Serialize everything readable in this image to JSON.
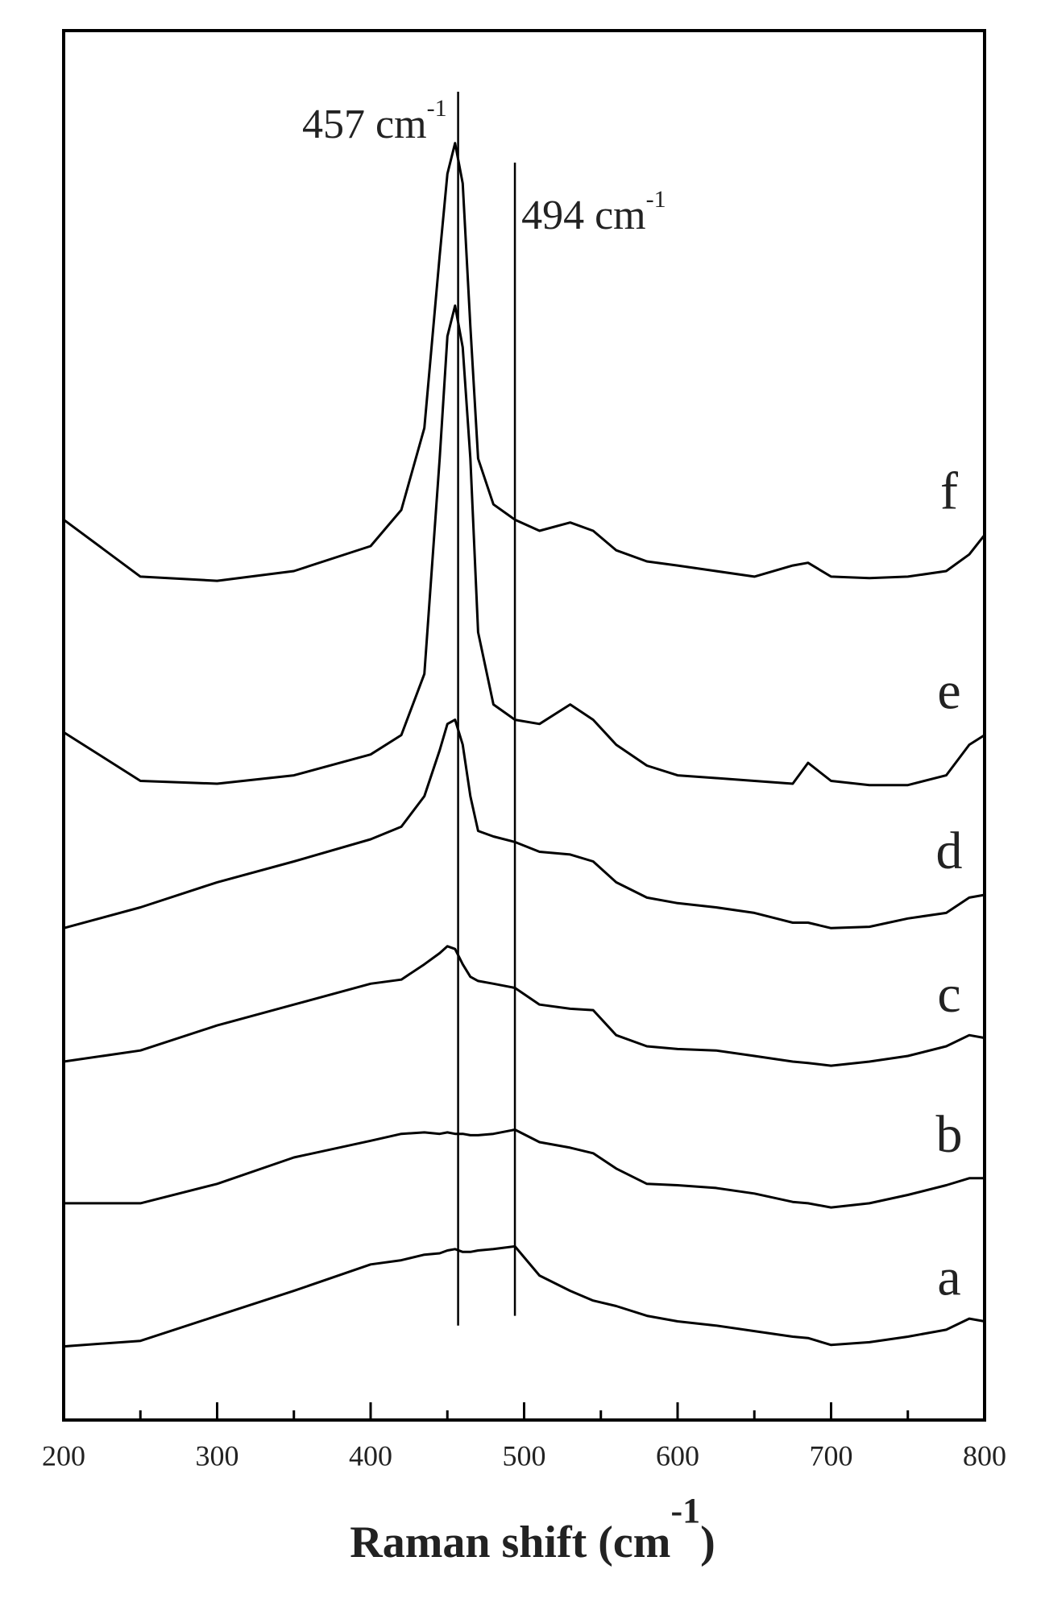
{
  "chart_data": {
    "type": "line",
    "xlabel": "Raman shift (cm",
    "xlabel_sup": "-1",
    "xlabel_end": ")",
    "x": [
      200,
      250,
      300,
      350,
      400,
      420,
      435,
      445,
      450,
      455,
      460,
      465,
      470,
      480,
      494,
      510,
      530,
      545,
      560,
      580,
      600,
      625,
      650,
      675,
      685,
      700,
      725,
      750,
      775,
      790,
      800
    ],
    "series": [
      {
        "name": "a",
        "color": "#000000",
        "values": [
          5.3,
          5.7,
          7.5,
          9.3,
          11.2,
          11.5,
          11.9,
          12.0,
          12.2,
          12.3,
          12.1,
          12.1,
          12.2,
          12.3,
          12.5,
          10.4,
          9.3,
          8.6,
          8.2,
          7.5,
          7.1,
          6.8,
          6.4,
          6.0,
          5.9,
          5.4,
          5.6,
          6.0,
          6.5,
          7.3,
          7.1
        ]
      },
      {
        "name": "b",
        "color": "#000000",
        "values": [
          15.6,
          15.6,
          17.0,
          18.9,
          20.1,
          20.6,
          20.7,
          20.6,
          20.7,
          20.6,
          20.6,
          20.5,
          20.5,
          20.6,
          20.9,
          20.0,
          19.6,
          19.2,
          18.1,
          17.0,
          16.9,
          16.7,
          16.3,
          15.7,
          15.6,
          15.3,
          15.6,
          16.2,
          16.9,
          17.4,
          17.4
        ]
      },
      {
        "name": "c",
        "color": "#000000",
        "values": [
          25.8,
          26.6,
          28.4,
          29.9,
          31.4,
          31.7,
          32.8,
          33.6,
          34.1,
          33.9,
          32.8,
          31.9,
          31.6,
          31.4,
          31.1,
          29.9,
          29.6,
          29.5,
          27.7,
          26.9,
          26.7,
          26.6,
          26.2,
          25.8,
          25.7,
          25.5,
          25.8,
          26.2,
          26.9,
          27.7,
          27.5
        ]
      },
      {
        "name": "d",
        "color": "#000000",
        "values": [
          35.4,
          36.9,
          38.7,
          40.2,
          41.8,
          42.7,
          44.9,
          48.2,
          50.1,
          50.4,
          48.6,
          44.9,
          42.4,
          42.0,
          41.6,
          40.9,
          40.7,
          40.2,
          38.7,
          37.6,
          37.2,
          36.9,
          36.5,
          35.8,
          35.8,
          35.4,
          35.5,
          36.1,
          36.5,
          37.6,
          37.8
        ]
      },
      {
        "name": "e",
        "color": "#000000",
        "values": [
          49.5,
          46.0,
          45.8,
          46.4,
          47.9,
          49.3,
          53.7,
          69.2,
          78.0,
          80.2,
          77.2,
          69.2,
          56.7,
          51.5,
          50.4,
          50.1,
          51.5,
          50.4,
          48.6,
          47.1,
          46.4,
          46.2,
          46.0,
          45.8,
          47.3,
          46.0,
          45.7,
          45.7,
          46.4,
          48.6,
          49.3
        ]
      },
      {
        "name": "f",
        "color": "#000000",
        "values": [
          64.8,
          60.7,
          60.4,
          61.1,
          62.9,
          65.5,
          71.4,
          83.8,
          89.7,
          91.9,
          89.0,
          78.7,
          69.2,
          65.9,
          64.8,
          64.0,
          64.6,
          64.0,
          62.6,
          61.8,
          61.5,
          61.1,
          60.7,
          61.5,
          61.7,
          60.7,
          60.6,
          60.7,
          61.1,
          62.3,
          63.7
        ]
      }
    ],
    "annotations": [
      {
        "x": 457,
        "label": "457 cm",
        "sup": "-1",
        "y_top": 95.6,
        "y_bottom": 6.8
      },
      {
        "x": 494,
        "label": "494 cm",
        "sup": "-1",
        "y_top": 90.5,
        "y_bottom": 7.5
      }
    ],
    "xlim": [
      200,
      800
    ],
    "ylim": [
      0,
      100
    ],
    "xticks": [
      200,
      300,
      400,
      500,
      600,
      700,
      800
    ],
    "xminorticks": [
      250,
      350,
      450,
      550,
      650,
      750
    ]
  }
}
